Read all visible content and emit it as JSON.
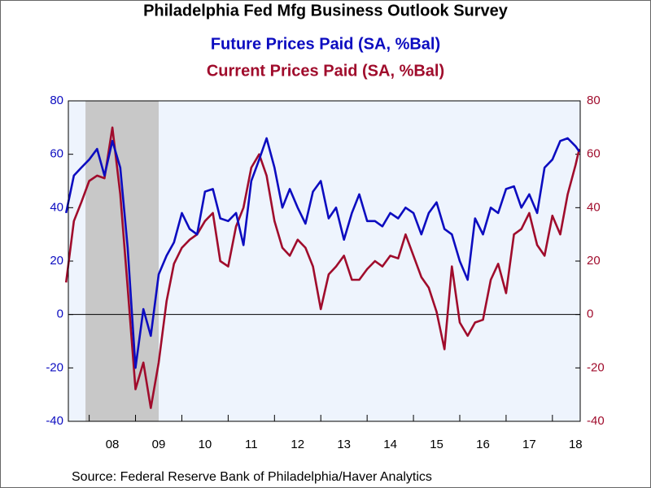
{
  "chart_data": {
    "type": "line",
    "title": "Philadelphia Fed Mfg Business Outlook Survey",
    "source": "Source:  Federal Reserve Bank of Philadelphia/Haver Analytics",
    "x": [
      2007.5,
      2007.67,
      2007.83,
      2008,
      2008.17,
      2008.33,
      2008.5,
      2008.67,
      2008.83,
      2009,
      2009.17,
      2009.33,
      2009.5,
      2009.67,
      2009.83,
      2010,
      2010.17,
      2010.33,
      2010.5,
      2010.67,
      2010.83,
      2011,
      2011.17,
      2011.33,
      2011.5,
      2011.67,
      2011.83,
      2012,
      2012.17,
      2012.33,
      2012.5,
      2012.67,
      2012.83,
      2013,
      2013.17,
      2013.33,
      2013.5,
      2013.67,
      2013.83,
      2014,
      2014.17,
      2014.33,
      2014.5,
      2014.67,
      2014.83,
      2015,
      2015.17,
      2015.33,
      2015.5,
      2015.67,
      2015.83,
      2016,
      2016.17,
      2016.33,
      2016.5,
      2016.67,
      2016.83,
      2017,
      2017.17,
      2017.33,
      2017.5,
      2017.67,
      2017.83,
      2018,
      2018.17,
      2018.33,
      2018.5,
      2018.58
    ],
    "series": [
      {
        "name": "Future Prices Paid (SA, %Bal)",
        "color": "#0c0cc0",
        "axis": "y",
        "values": [
          38,
          52,
          55,
          58,
          62,
          52,
          65,
          55,
          25,
          -20,
          2,
          -8,
          15,
          22,
          27,
          38,
          32,
          30,
          46,
          47,
          36,
          35,
          38,
          26,
          50,
          58,
          66,
          55,
          40,
          47,
          40,
          34,
          46,
          50,
          36,
          40,
          28,
          38,
          45,
          35,
          35,
          33,
          38,
          36,
          40,
          38,
          30,
          38,
          42,
          32,
          30,
          20,
          13,
          36,
          30,
          40,
          38,
          47,
          48,
          40,
          45,
          38,
          55,
          58,
          65,
          66,
          63,
          61
        ]
      },
      {
        "name": "Current Prices Paid (SA, %Bal)",
        "color": "#a00c2c",
        "axis": "y2",
        "values": [
          12,
          35,
          42,
          50,
          52,
          51,
          70,
          45,
          10,
          -28,
          -18,
          -35,
          -18,
          5,
          19,
          25,
          28,
          30,
          35,
          38,
          20,
          18,
          33,
          40,
          55,
          60,
          52,
          35,
          25,
          22,
          28,
          25,
          18,
          2,
          15,
          18,
          22,
          13,
          13,
          17,
          20,
          18,
          22,
          21,
          30,
          22,
          14,
          10,
          1,
          -13,
          18,
          -3,
          -8,
          -3,
          -2,
          13,
          19,
          8,
          30,
          32,
          38,
          26,
          22,
          37,
          30,
          45,
          56,
          62
        ]
      }
    ],
    "xlim": [
      2007.55,
      2018.6
    ],
    "xticks": [
      {
        "value": 2008,
        "label": "08"
      },
      {
        "value": 2009,
        "label": "09"
      },
      {
        "value": 2010,
        "label": "10"
      },
      {
        "value": 2011,
        "label": "11"
      },
      {
        "value": 2012,
        "label": "12"
      },
      {
        "value": 2013,
        "label": "13"
      },
      {
        "value": 2014,
        "label": "14"
      },
      {
        "value": 2015,
        "label": "15"
      },
      {
        "value": 2016,
        "label": "16"
      },
      {
        "value": 2017,
        "label": "17"
      },
      {
        "value": 2018,
        "label": "18"
      }
    ],
    "ylim": [
      -40,
      80
    ],
    "yticks": [
      80,
      60,
      40,
      20,
      0,
      -20,
      -40
    ],
    "y2lim": [
      -40,
      80
    ],
    "y2ticks": [
      80,
      60,
      40,
      20,
      0,
      -20,
      -40
    ],
    "shade": [
      2007.92,
      2009.5
    ]
  }
}
